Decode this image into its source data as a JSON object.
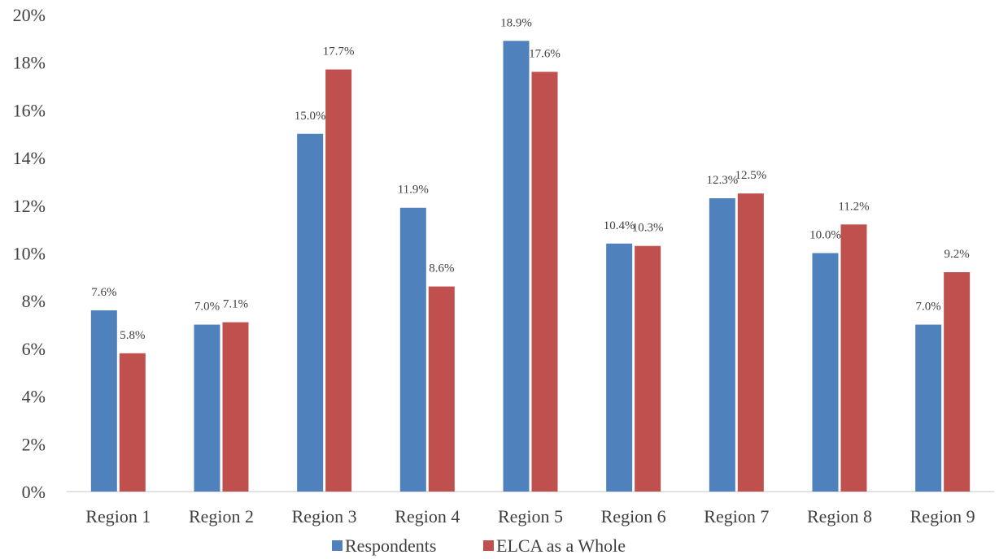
{
  "chart_data": {
    "type": "bar",
    "title": "",
    "xlabel": "",
    "ylabel": "",
    "categories": [
      "Region 1",
      "Region 2",
      "Region 3",
      "Region 4",
      "Region 5",
      "Region 6",
      "Region 7",
      "Region 8",
      "Region 9"
    ],
    "series": [
      {
        "name": "Respondents",
        "color": "#4f81bd",
        "values": [
          7.6,
          7.0,
          15.0,
          11.9,
          18.9,
          10.4,
          12.3,
          10.0,
          7.0
        ],
        "labels": [
          "7.6%",
          "7.0%",
          "15.0%",
          "11.9%",
          "18.9%",
          "10.4%",
          "12.3%",
          "10.0%",
          "7.0%"
        ]
      },
      {
        "name": "ELCA as a Whole",
        "color": "#c0504d",
        "values": [
          5.8,
          7.1,
          17.7,
          8.6,
          17.6,
          10.3,
          12.5,
          11.2,
          9.2
        ],
        "labels": [
          "5.8%",
          "7.1%",
          "17.7%",
          "8.6%",
          "17.6%",
          "10.3%",
          "12.5%",
          "11.2%",
          "9.2%"
        ]
      }
    ],
    "ylim": [
      0,
      20
    ],
    "yticks": [
      "0%",
      "2%",
      "4%",
      "6%",
      "8%",
      "10%",
      "12%",
      "14%",
      "16%",
      "18%",
      "20%"
    ],
    "grid": false,
    "legend_position": "bottom"
  }
}
